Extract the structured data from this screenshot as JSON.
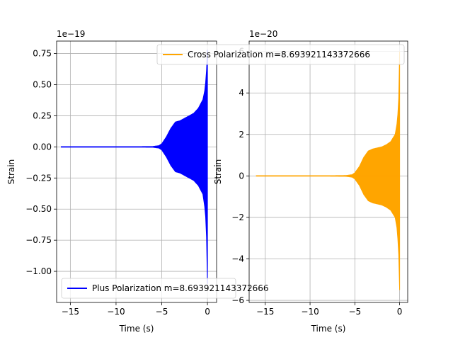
{
  "chart_data": [
    {
      "type": "line",
      "title": "",
      "xlabel": "Time (s)",
      "ylabel": "Strain",
      "offset_text": "1e−19",
      "xlim": [
        -16.5,
        1.0
      ],
      "ylim": [
        -1.25,
        0.85
      ],
      "grid": true,
      "legend_position": "lower-left",
      "x_ticks": [
        -15,
        -10,
        -5,
        0
      ],
      "x_tick_labels": [
        "−15",
        "−10",
        "−5",
        "0"
      ],
      "y_ticks": [
        0.75,
        0.5,
        0.25,
        0.0,
        -0.25,
        -0.5,
        -0.75,
        -1.0
      ],
      "y_tick_labels": [
        "0.75",
        "0.50",
        "0.25",
        "0.00",
        "−0.25",
        "−0.50",
        "−0.75",
        "−1.00"
      ],
      "series": [
        {
          "name": "Plus Polarization m=8.693921143372666",
          "color": "#0000ff",
          "envelope": {
            "x": [
              -16,
              -8,
              -6,
              -5.3,
              -5,
              -4.5,
              -4,
              -3.5,
              -3,
              -2,
              -1.5,
              -1,
              -0.5,
              -0.3,
              -0.15,
              -0.05,
              0
            ],
            "upper": [
              0.002,
              0.002,
              0.003,
              0.01,
              0.025,
              0.08,
              0.15,
              0.2,
              0.21,
              0.25,
              0.27,
              0.31,
              0.38,
              0.45,
              0.55,
              0.68,
              0.78
            ],
            "lower": [
              -0.002,
              -0.002,
              -0.003,
              -0.01,
              -0.025,
              -0.08,
              -0.15,
              -0.2,
              -0.21,
              -0.25,
              -0.27,
              -0.31,
              -0.38,
              -0.48,
              -0.6,
              -0.85,
              -1.1
            ]
          }
        }
      ]
    },
    {
      "type": "line",
      "title": "",
      "xlabel": "Time (s)",
      "ylabel": "Strain",
      "offset_text": "1e−20",
      "xlim": [
        -16.8,
        0.9
      ],
      "ylim": [
        -6.1,
        6.5
      ],
      "grid": true,
      "legend_position": "top-left",
      "x_ticks": [
        -15,
        -10,
        -5,
        0
      ],
      "x_tick_labels": [
        "−15",
        "−10",
        "−5",
        "0"
      ],
      "y_ticks": [
        6,
        4,
        2,
        0,
        -2,
        -4,
        -6
      ],
      "y_tick_labels": [
        "6",
        "4",
        "2",
        "0",
        "−2",
        "−4",
        "−6"
      ],
      "series": [
        {
          "name": "Cross Polarization m=8.693921143372666",
          "color": "#ffa500",
          "envelope": {
            "x": [
              -16,
              -8,
              -6,
              -5.3,
              -5,
              -4.5,
              -4,
              -3.5,
              -3,
              -2,
              -1.5,
              -1,
              -0.5,
              -0.3,
              -0.15,
              -0.05,
              0
            ],
            "upper": [
              0.01,
              0.01,
              0.02,
              0.06,
              0.15,
              0.45,
              0.9,
              1.2,
              1.3,
              1.4,
              1.5,
              1.65,
              2.0,
              2.5,
              3.2,
              4.3,
              6.0
            ],
            "lower": [
              -0.01,
              -0.01,
              -0.02,
              -0.06,
              -0.15,
              -0.45,
              -0.9,
              -1.2,
              -1.3,
              -1.4,
              -1.5,
              -1.65,
              -2.0,
              -2.5,
              -3.3,
              -4.3,
              -5.5
            ]
          }
        }
      ]
    }
  ]
}
